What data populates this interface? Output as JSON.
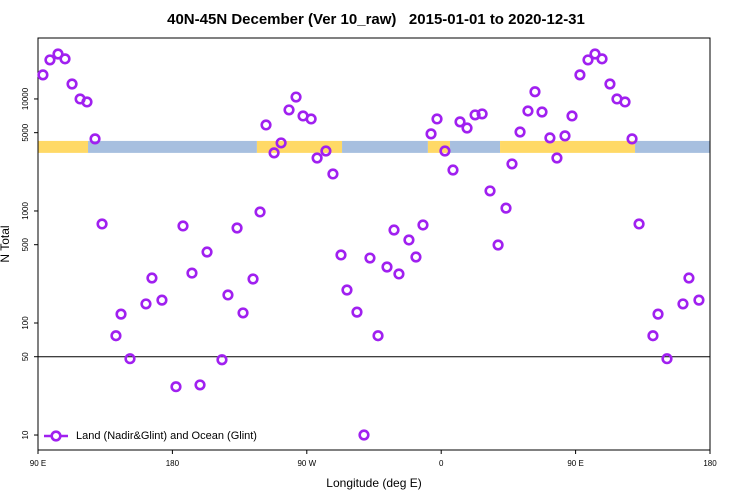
{
  "chart_data": {
    "type": "scatter",
    "title": "40N-45N December (Ver 10_raw)   2015-01-01 to 2020-12-31",
    "x_label": "Longitude (deg E)",
    "y_label": "N Total",
    "xlim": [
      90,
      540
    ],
    "xticks": [
      {
        "value": 90,
        "label": "90 E"
      },
      {
        "value": 180,
        "label": "180"
      },
      {
        "value": 270,
        "label": "90 W"
      },
      {
        "value": 360,
        "label": "0"
      },
      {
        "value": 450,
        "label": "90 E"
      },
      {
        "value": 540,
        "label": "180"
      }
    ],
    "ylim": [
      7.35,
      35000
    ],
    "yticks": [
      10,
      50,
      100,
      500,
      1000,
      5000,
      10000
    ],
    "log_y": true,
    "hline": 50,
    "legend": "bottom-left",
    "surface_strip": {
      "ylim": [
        3300,
        4220
      ],
      "segments": [
        {
          "from": 90,
          "to": 123.5,
          "color": "#ffd966"
        },
        {
          "from": 123.5,
          "to": 236.6,
          "color": "#a7bfdf"
        },
        {
          "from": 236.6,
          "to": 293.6,
          "color": "#ffd966"
        },
        {
          "from": 293.6,
          "to": 351.1,
          "color": "#a7bfdf"
        },
        {
          "from": 351.1,
          "to": 365.9,
          "color": "#ffd966"
        },
        {
          "from": 365.9,
          "to": 399.4,
          "color": "#a7bfdf"
        },
        {
          "from": 399.4,
          "to": 489.8,
          "color": "#ffd966"
        },
        {
          "from": 489.8,
          "to": 540,
          "color": "#a7bfdf"
        }
      ]
    },
    "series": [
      {
        "name": "Land (Nadir&Glint) and Ocean (Glint)",
        "color": "#a020f0",
        "x": [
          93.3,
          98.0,
          103.4,
          108.1,
          112.8,
          118.2,
          122.8,
          128.2,
          132.9,
          142.2,
          145.6,
          151.6,
          162.3,
          166.3,
          173.0,
          182.4,
          187.1,
          193.1,
          198.5,
          203.2,
          213.2,
          217.2,
          223.3,
          227.3,
          234.0,
          238.7,
          242.7,
          248.1,
          252.8,
          258.1,
          262.8,
          267.5,
          272.9,
          276.9,
          282.8,
          287.5,
          292.9,
          296.9,
          303.6,
          308.3,
          312.3,
          317.7,
          323.7,
          328.4,
          331.7,
          338.4,
          343.1,
          347.8,
          353.2,
          357.2,
          362.5,
          367.9,
          372.6,
          377.3,
          382.7,
          387.4,
          392.7,
          398.1,
          403.4,
          407.4,
          412.8,
          418.1,
          422.8,
          427.5,
          432.8,
          437.5,
          442.9,
          447.6,
          452.9,
          458.3,
          463.0,
          467.7,
          473.0,
          477.7,
          483.1,
          487.8,
          492.5,
          501.8,
          505.2,
          511.2,
          521.9,
          525.9,
          532.6
        ],
        "values": [
          16400,
          22300,
          25200,
          22800,
          13600,
          10000,
          9400,
          4400,
          766,
          77,
          120,
          48,
          148,
          252,
          160,
          27,
          735,
          279,
          28,
          430,
          47,
          178,
          705,
          123,
          247,
          980,
          5860,
          3300,
          4050,
          7980,
          10400,
          7050,
          6630,
          2970,
          3430,
          2140,
          405,
          197,
          125,
          10,
          380,
          77,
          316,
          676,
          274,
          551,
          388,
          750,
          4880,
          6630,
          3430,
          2320,
          6240,
          5500,
          7200,
          7350,
          1510,
          497,
          1060,
          2630,
          5070,
          7810,
          11600,
          7650,
          4490,
          2970,
          4680,
          7050,
          16400,
          22300,
          25200,
          22800,
          13600,
          10000,
          9400,
          4400,
          766,
          77,
          120,
          48,
          148,
          252,
          160
        ]
      }
    ]
  }
}
